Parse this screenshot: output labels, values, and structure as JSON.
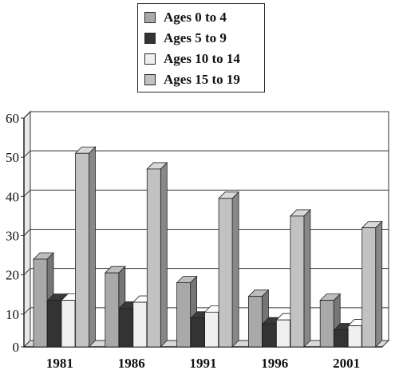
{
  "chart_data": {
    "type": "bar",
    "title": "",
    "xlabel": "",
    "ylabel": "",
    "ylim": [
      0,
      60
    ],
    "yticks": [
      0,
      10,
      20,
      30,
      40,
      50,
      60
    ],
    "grid": true,
    "legend_position": "top",
    "style": "3d",
    "categories": [
      "1981",
      "1986",
      "1991",
      "1996",
      "2001"
    ],
    "series": [
      {
        "name": "Ages 0 to 4",
        "color": "#a9a9a9",
        "values": [
          24,
          20.5,
          18,
          14.5,
          13.5
        ]
      },
      {
        "name": "Ages 5 to 9",
        "color": "#333333",
        "values": [
          13.5,
          11.5,
          9,
          7.5,
          6
        ]
      },
      {
        "name": "Ages 10 to 14",
        "color": "#f0f0f0",
        "values": [
          13.5,
          13,
          10.5,
          8.5,
          7
        ]
      },
      {
        "name": "Ages 15 to 19",
        "color": "#c2c2c2",
        "values": [
          51,
          47,
          39.5,
          35,
          32
        ]
      }
    ]
  }
}
